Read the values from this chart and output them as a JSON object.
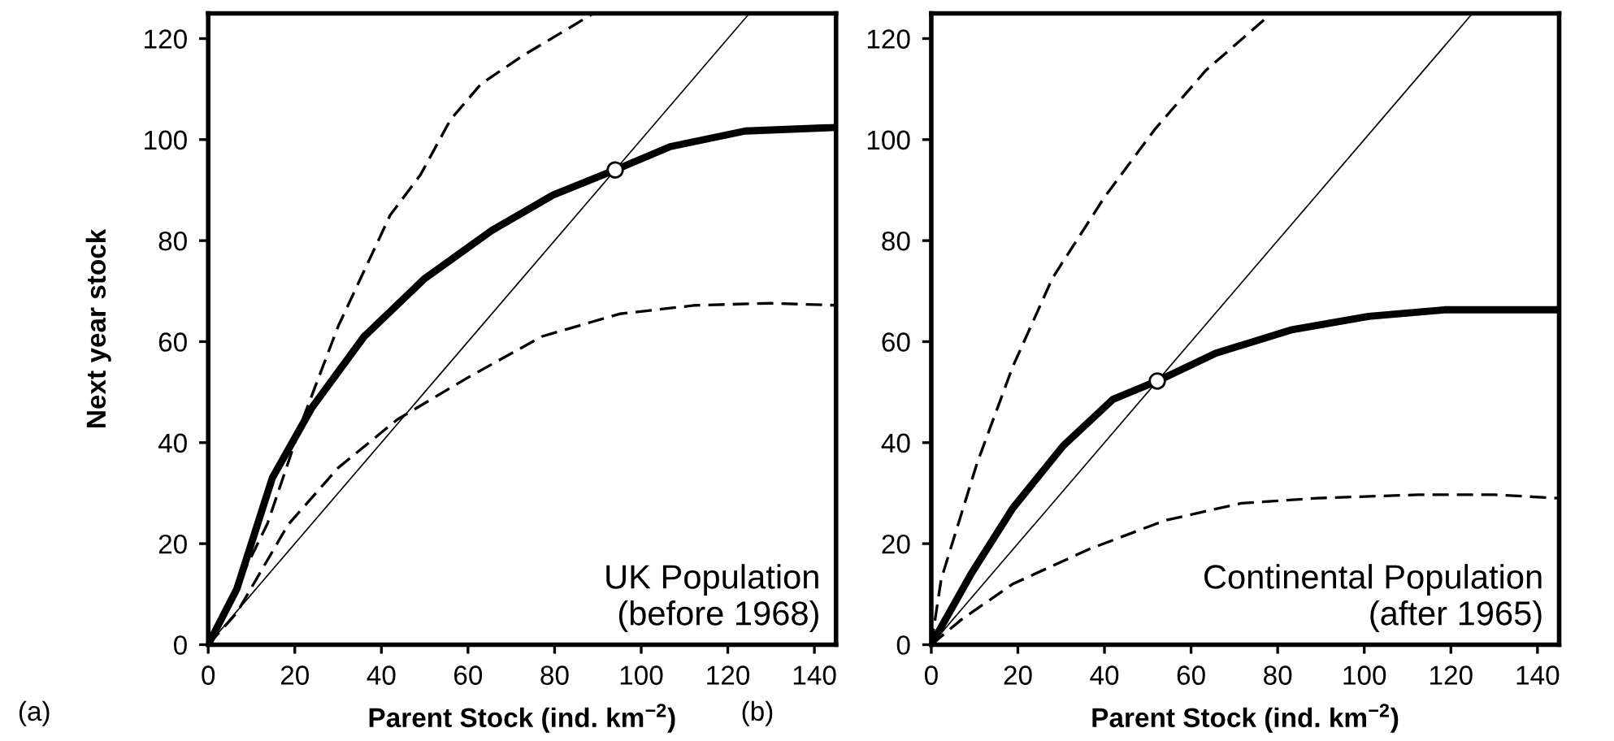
{
  "chart_data": [
    {
      "type": "line",
      "xlabel": "Parent Stock (ind. km$^{−2}$)",
      "ylabel": "Next year stock",
      "annotations": [
        "UK Population\n(before 1968)",
        "(a)"
      ],
      "xlim": [
        0,
        145
      ],
      "ylim": [
        0,
        125
      ],
      "xticks": [
        0,
        20,
        40,
        60,
        80,
        100,
        120,
        140
      ],
      "yticks": [
        0,
        20,
        40,
        60,
        80,
        100,
        120
      ],
      "grid": false,
      "legend": false,
      "series": [
        {
          "color": "#000000",
          "line_style": "solid",
          "marker": "none",
          "x": [
            0,
            6.6,
            14.8,
            24,
            36,
            50,
            65.5,
            79.6,
            94,
            106.7,
            124,
            145
          ],
          "values": [
            0,
            11,
            33,
            47,
            61,
            72.5,
            82,
            89,
            94,
            98.6,
            101.7,
            102.4
          ]
        },
        {
          "color": "#000000",
          "line_style": "dashed",
          "marker": "none",
          "x": [
            0,
            13.7,
            22,
            30,
            36,
            42,
            49,
            56,
            63,
            72.6,
            89
          ],
          "values": [
            0,
            24,
            45,
            63,
            74,
            85,
            93,
            104,
            111,
            116.6,
            125
          ]
        },
        {
          "color": "#000000",
          "line_style": "dashed",
          "marker": "none",
          "x": [
            0,
            6.6,
            18.4,
            30,
            43.7,
            59.6,
            77,
            95,
            112.6,
            130,
            145
          ],
          "values": [
            0,
            6.3,
            23.7,
            35,
            44.6,
            52.7,
            61,
            65.5,
            67.2,
            67.6,
            67.2
          ]
        },
        {
          "color": "#000000",
          "line_style": "solid",
          "marker": "none",
          "x": [
            0,
            125
          ],
          "values": [
            0,
            125
          ]
        },
        {
          "type": "scatter",
          "color": "#ffffff",
          "marker": "circle",
          "x": [
            94
          ],
          "values": [
            94
          ]
        }
      ]
    },
    {
      "type": "line",
      "xlabel": "Parent Stock (ind. km$^{−2}$)",
      "annotations": [
        "Continental Population\n(after 1965)",
        "(b)"
      ],
      "xlim": [
        0,
        145
      ],
      "ylim": [
        0,
        125
      ],
      "xticks": [
        0,
        20,
        40,
        60,
        80,
        100,
        120,
        140
      ],
      "yticks": [
        0,
        20,
        40,
        60,
        80,
        100,
        120
      ],
      "grid": false,
      "legend": false,
      "series": [
        {
          "color": "#000000",
          "line_style": "solid",
          "marker": "none",
          "x": [
            0,
            9.4,
            18.8,
            30.5,
            42,
            52.2,
            65.7,
            83,
            101,
            118.5,
            145
          ],
          "values": [
            0,
            14.3,
            27,
            39.4,
            48.6,
            52.2,
            57.7,
            62.3,
            65,
            66.3,
            66.3
          ]
        },
        {
          "color": "#000000",
          "line_style": "dashed",
          "marker": "none",
          "x": [
            0,
            2.3,
            10.6,
            18.8,
            28,
            40,
            51.6,
            63.4,
            77.5
          ],
          "values": [
            0,
            13,
            36,
            55,
            72.6,
            88.6,
            102,
            113.7,
            124.2
          ]
        },
        {
          "color": "#000000",
          "line_style": "dashed",
          "marker": "none",
          "x": [
            0,
            7,
            18.8,
            36.4,
            54,
            71.6,
            89,
            112.7,
            130,
            145
          ],
          "values": [
            0,
            5,
            12,
            18.9,
            24.6,
            28,
            29,
            29.7,
            29.7,
            29
          ]
        },
        {
          "color": "#000000",
          "line_style": "solid",
          "marker": "none",
          "x": [
            0,
            125
          ],
          "values": [
            0,
            125
          ]
        },
        {
          "type": "scatter",
          "color": "#ffffff",
          "marker": "circle",
          "x": [
            52.2
          ],
          "values": [
            52.2
          ]
        }
      ]
    }
  ]
}
